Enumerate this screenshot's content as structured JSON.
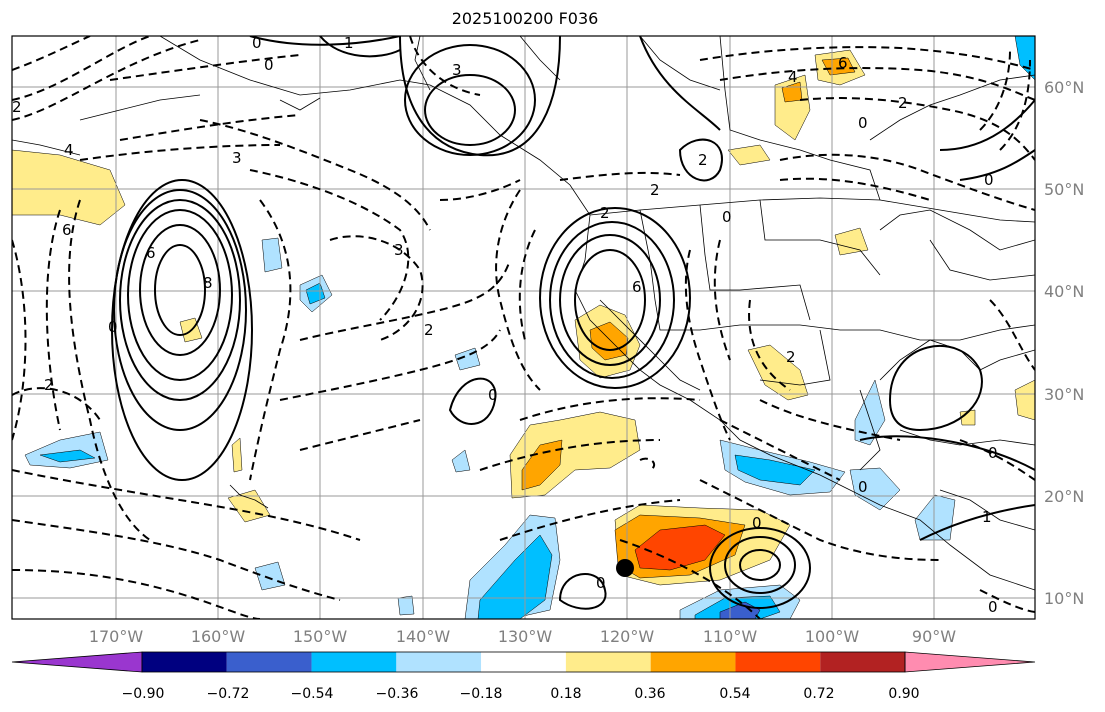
{
  "title": "2025100200 F036",
  "lat_labels": [
    "60°N",
    "50°N",
    "40°N",
    "30°N",
    "20°N",
    "10°N"
  ],
  "lon_labels": [
    "170°W",
    "160°W",
    "150°W",
    "140°W",
    "130°W",
    "120°W",
    "110°W",
    "100°W",
    "90°W"
  ],
  "colorbar": {
    "tick_labels": [
      "−0.90",
      "−0.72",
      "−0.54",
      "−0.36",
      "−0.18",
      "0.18",
      "0.36",
      "0.54",
      "0.72",
      "0.90"
    ],
    "colors": [
      "#9a36cf",
      "#000080",
      "#3a5fcd",
      "#00bfff",
      "#b0e2ff",
      "#ffffff",
      "#ffec8b",
      "#ffa500",
      "#ff4500",
      "#b22222",
      "#ff8cb0"
    ]
  },
  "contour_labels": [
    "0",
    "1",
    "2",
    "3",
    "4",
    "6",
    "8"
  ],
  "colors": {
    "land_outline": "#000000",
    "grid": "#999999",
    "contour": "#000000",
    "marker": "#000000"
  }
}
